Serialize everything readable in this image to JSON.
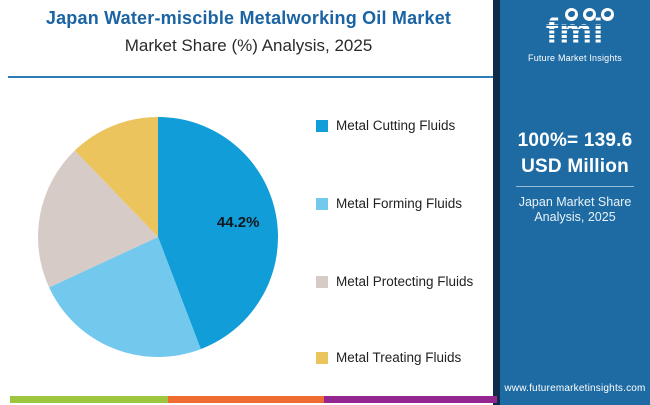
{
  "header": {
    "title": "Japan Water-miscible Metalworking Oil Market",
    "subtitle": "Market Share (%) Analysis, 2025"
  },
  "chart_data": {
    "type": "pie",
    "title": "Japan Water-miscible Metalworking Oil Market — Market Share (%) Analysis, 2025",
    "categories": [
      "Metal Cutting Fluids",
      "Metal Forming Fluids",
      "Metal Protecting Fluids",
      "Metal Treating Fluids"
    ],
    "values": [
      44.2,
      23.9,
      19.7,
      12.2
    ],
    "labels_shown": [
      "44.2%",
      "",
      "",
      ""
    ],
    "colors": [
      "#119dd8",
      "#72c8ed",
      "#d6cbc6",
      "#ecc45e"
    ],
    "start_angle_deg": 0,
    "direction": "clockwise",
    "legend_position": "right",
    "grid": false
  },
  "sidebar": {
    "logo": {
      "brand": "fmi",
      "tagline": "Future Market Insights",
      "icons": [
        "globe-icon",
        "globe-icon",
        "globe-icon"
      ]
    },
    "stat_line1": "100%= 139.6",
    "stat_line2": "USD Million",
    "caption_line1": "Japan Market Share",
    "caption_line2": "Analysis, 2025",
    "website": "www.futuremarketinsights.com",
    "colors": {
      "background": "#1e6ba3",
      "edge": "#0d2c4b"
    }
  },
  "footer": {
    "stripe_colors": [
      "#9dc53d",
      "#ee6b31",
      "#93268f"
    ]
  }
}
